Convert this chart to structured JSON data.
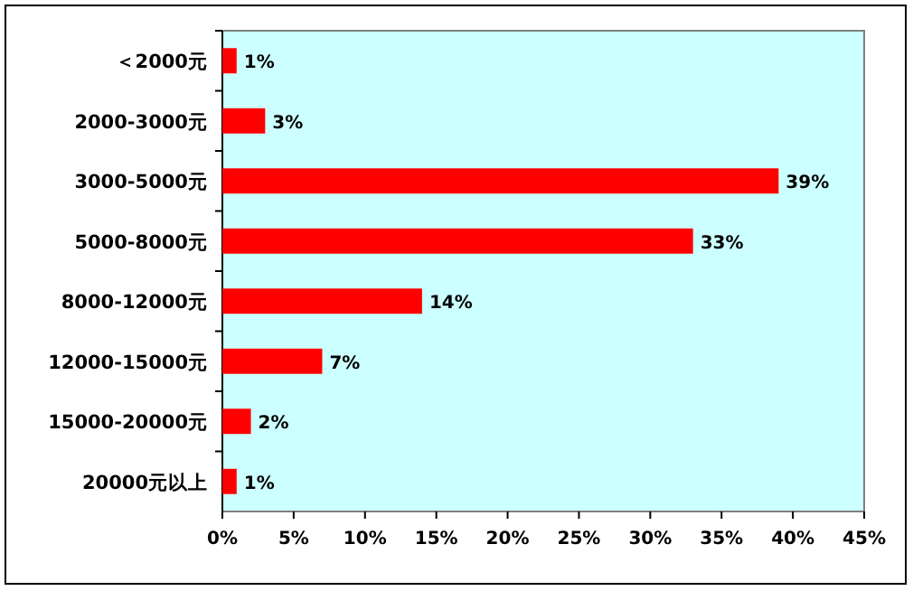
{
  "chart_data": {
    "type": "bar",
    "orientation": "horizontal",
    "categories": [
      "＜2000元",
      "2000-3000元",
      "3000-5000元",
      "5000-8000元",
      "8000-12000元",
      "12000-15000元",
      "15000-20000元",
      "20000元以上"
    ],
    "values": [
      1,
      3,
      39,
      33,
      14,
      7,
      2,
      1
    ],
    "value_labels": [
      "1%",
      "3%",
      "39%",
      "33%",
      "14%",
      "7%",
      "2%",
      "1%"
    ],
    "color": "#ff0000",
    "xlim": [
      0,
      45
    ],
    "xticks": [
      {
        "value": 0,
        "label": "0%"
      },
      {
        "value": 5,
        "label": "5%"
      },
      {
        "value": 10,
        "label": "10%"
      },
      {
        "value": 15,
        "label": "15%"
      },
      {
        "value": 20,
        "label": "20%"
      },
      {
        "value": 25,
        "label": "25%"
      },
      {
        "value": 30,
        "label": "30%"
      },
      {
        "value": 35,
        "label": "35%"
      },
      {
        "value": 40,
        "label": "40%"
      },
      {
        "value": 45,
        "label": "45%"
      }
    ],
    "grid": false
  }
}
